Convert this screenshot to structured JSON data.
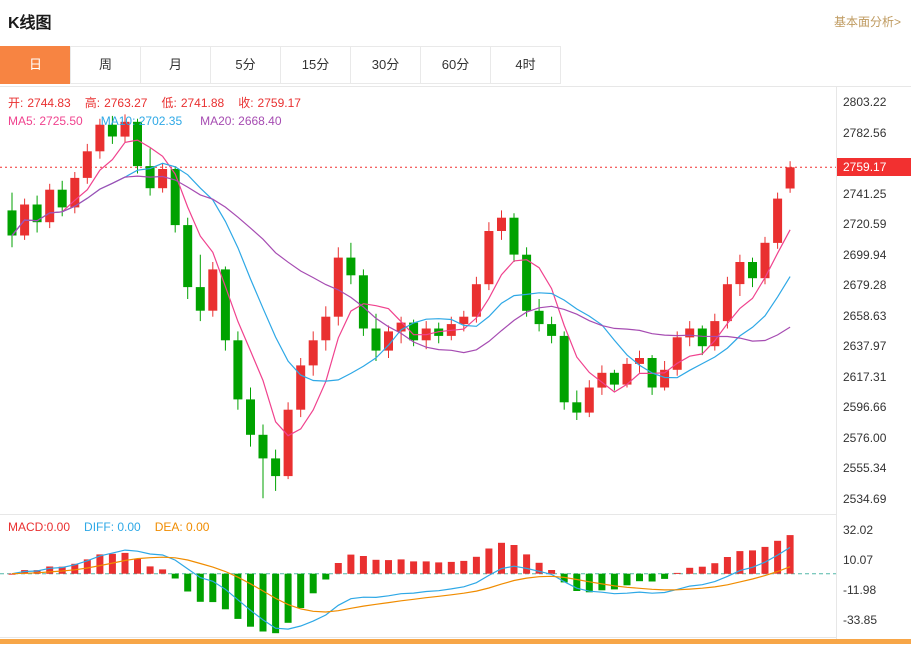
{
  "header": {
    "title": "K线图",
    "link": "基本面分析>"
  },
  "tabs": [
    {
      "label": "日",
      "active": true
    },
    {
      "label": "周",
      "active": false
    },
    {
      "label": "月",
      "active": false
    },
    {
      "label": "5分",
      "active": false
    },
    {
      "label": "15分",
      "active": false
    },
    {
      "label": "30分",
      "active": false
    },
    {
      "label": "60分",
      "active": false
    },
    {
      "label": "4时",
      "active": false
    }
  ],
  "ohlc": {
    "open_label": "开:",
    "open": "2744.83",
    "high_label": "高:",
    "high": "2763.27",
    "low_label": "低:",
    "low": "2741.88",
    "close_label": "收:",
    "close": "2759.17"
  },
  "ma_panel": {
    "ma5": "MA5: 2725.50",
    "ma10": "MA10: 2702.35",
    "ma20": "MA20: 2668.40"
  },
  "macd_panel": {
    "macd": "MACD:0.00",
    "diff": "DIFF: 0.00",
    "dea": "DEA: 0.00"
  },
  "price_tag": "2759.17",
  "colors": {
    "up": "#e93030",
    "down": "#00a200",
    "ma5": "#f0428e",
    "ma10": "#2ea8e6",
    "ma20": "#a64cb2",
    "diff": "#2ea8e6",
    "dea": "#f08c00",
    "price_line": "#f23030",
    "zero_line": "#52b7a8",
    "accent": "#f78442",
    "link": "#bf9a5f",
    "bottom_bar": "#f7a648"
  },
  "chart_data": [
    {
      "type": "candlestick",
      "title": "K线图 (daily candles, red=up green=down, values estimated from axis)",
      "ylim": [
        2524.36,
        2813.55
      ],
      "y_ticks": [
        2803.22,
        2782.56,
        2741.25,
        2720.59,
        2699.94,
        2679.28,
        2658.63,
        2637.97,
        2617.31,
        2596.66,
        2576.0,
        2555.34,
        2534.69
      ],
      "price_line": 2759.17,
      "overlays": [
        {
          "name": "MA5",
          "value": 2725.5
        },
        {
          "name": "MA10",
          "value": 2702.35
        },
        {
          "name": "MA20",
          "value": 2668.4
        }
      ],
      "candles": [
        [
          2730,
          2742,
          2705,
          2713
        ],
        [
          2713,
          2738,
          2710,
          2734
        ],
        [
          2734,
          2740,
          2715,
          2722
        ],
        [
          2722,
          2748,
          2718,
          2744
        ],
        [
          2744,
          2750,
          2726,
          2732
        ],
        [
          2732,
          2756,
          2728,
          2752
        ],
        [
          2752,
          2775,
          2748,
          2770
        ],
        [
          2770,
          2792,
          2765,
          2788
        ],
        [
          2788,
          2794,
          2775,
          2780
        ],
        [
          2780,
          2795,
          2776,
          2790
        ],
        [
          2790,
          2792,
          2755,
          2760
        ],
        [
          2760,
          2772,
          2740,
          2745
        ],
        [
          2745,
          2762,
          2742,
          2758
        ],
        [
          2758,
          2760,
          2715,
          2720
        ],
        [
          2720,
          2725,
          2670,
          2678
        ],
        [
          2678,
          2700,
          2655,
          2662
        ],
        [
          2662,
          2695,
          2658,
          2690
        ],
        [
          2690,
          2692,
          2635,
          2642
        ],
        [
          2642,
          2648,
          2595,
          2602
        ],
        [
          2602,
          2610,
          2570,
          2578
        ],
        [
          2578,
          2585,
          2535,
          2562
        ],
        [
          2562,
          2568,
          2540,
          2550
        ],
        [
          2550,
          2600,
          2548,
          2595
        ],
        [
          2595,
          2630,
          2590,
          2625
        ],
        [
          2625,
          2648,
          2618,
          2642
        ],
        [
          2642,
          2665,
          2635,
          2658
        ],
        [
          2658,
          2705,
          2652,
          2698
        ],
        [
          2698,
          2708,
          2680,
          2686
        ],
        [
          2686,
          2690,
          2645,
          2650
        ],
        [
          2650,
          2660,
          2628,
          2635
        ],
        [
          2635,
          2652,
          2630,
          2648
        ],
        [
          2648,
          2658,
          2640,
          2654
        ],
        [
          2654,
          2656,
          2638,
          2642
        ],
        [
          2642,
          2655,
          2636,
          2650
        ],
        [
          2650,
          2654,
          2640,
          2645
        ],
        [
          2645,
          2658,
          2642,
          2653
        ],
        [
          2653,
          2662,
          2648,
          2658
        ],
        [
          2658,
          2685,
          2654,
          2680
        ],
        [
          2680,
          2722,
          2676,
          2716
        ],
        [
          2716,
          2730,
          2710,
          2725
        ],
        [
          2725,
          2728,
          2695,
          2700
        ],
        [
          2700,
          2705,
          2658,
          2662
        ],
        [
          2662,
          2670,
          2648,
          2653
        ],
        [
          2653,
          2658,
          2640,
          2645
        ],
        [
          2645,
          2648,
          2595,
          2600
        ],
        [
          2600,
          2608,
          2588,
          2593
        ],
        [
          2593,
          2615,
          2590,
          2610
        ],
        [
          2610,
          2625,
          2605,
          2620
        ],
        [
          2620,
          2622,
          2608,
          2612
        ],
        [
          2612,
          2630,
          2610,
          2626
        ],
        [
          2626,
          2635,
          2620,
          2630
        ],
        [
          2630,
          2632,
          2605,
          2610
        ],
        [
          2610,
          2628,
          2608,
          2622
        ],
        [
          2622,
          2648,
          2618,
          2644
        ],
        [
          2644,
          2655,
          2638,
          2650
        ],
        [
          2650,
          2652,
          2632,
          2638
        ],
        [
          2638,
          2660,
          2635,
          2655
        ],
        [
          2655,
          2685,
          2650,
          2680
        ],
        [
          2680,
          2700,
          2672,
          2695
        ],
        [
          2695,
          2698,
          2678,
          2684
        ],
        [
          2684,
          2712,
          2680,
          2708
        ],
        [
          2708,
          2742,
          2704,
          2738
        ],
        [
          2744.83,
          2763.27,
          2741.88,
          2759.17
        ]
      ]
    },
    {
      "type": "bar",
      "title": "MACD (12,26,9) histogram with DIFF/DEA lines, derived from candle closes",
      "ylim": [
        -44.83,
        43.0
      ],
      "y_ticks": [
        32.02,
        10.07,
        -11.98,
        -33.85
      ],
      "zero_line": 0
    }
  ]
}
